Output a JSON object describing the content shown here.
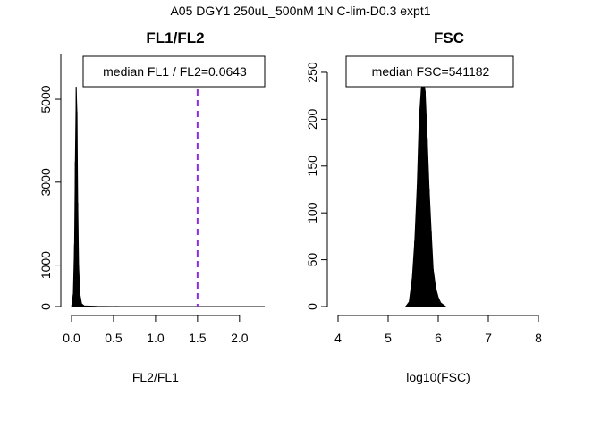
{
  "figure_title": "A05 DGY1 250uL_500nM 1N C-lim-D0.3 expt1",
  "chart_data": [
    {
      "type": "histogram",
      "title": "FL1/FL2",
      "xlabel": "FL2/FL1",
      "ylabel": "",
      "xlim": [
        0,
        2.3
      ],
      "ylim": [
        0,
        6100
      ],
      "x_ticks": [
        0.0,
        0.5,
        1.0,
        1.5,
        2.0
      ],
      "x_tick_labels": [
        "0.0",
        "0.5",
        "1.0",
        "1.5",
        "2.0"
      ],
      "y_ticks": [
        0,
        1000,
        3000,
        5000
      ],
      "y_tick_labels": [
        "0",
        "1000",
        "3000",
        "5000"
      ],
      "bins": [
        {
          "x": 0.0,
          "count": 0
        },
        {
          "x": 0.02,
          "count": 300
        },
        {
          "x": 0.035,
          "count": 1500
        },
        {
          "x": 0.045,
          "count": 3500
        },
        {
          "x": 0.055,
          "count": 5300
        },
        {
          "x": 0.065,
          "count": 4700
        },
        {
          "x": 0.075,
          "count": 2500
        },
        {
          "x": 0.085,
          "count": 1000
        },
        {
          "x": 0.1,
          "count": 300
        },
        {
          "x": 0.12,
          "count": 70
        },
        {
          "x": 0.15,
          "count": 20
        },
        {
          "x": 0.3,
          "count": 6
        },
        {
          "x": 0.6,
          "count": 2
        },
        {
          "x": 2.3,
          "count": 0
        }
      ],
      "reference_line": {
        "x": 1.5,
        "color": "#8a2be2",
        "style": "dashed"
      },
      "legend_text": "median FL1 / FL2=0.0643",
      "legend_position": "top-right"
    },
    {
      "type": "histogram",
      "title": "FSC",
      "xlabel": "log10(FSC)",
      "ylabel": "",
      "xlim": [
        4,
        8
      ],
      "ylim": [
        0,
        270
      ],
      "x_ticks": [
        4,
        5,
        6,
        7,
        8
      ],
      "x_tick_labels": [
        "4",
        "5",
        "6",
        "7",
        "8"
      ],
      "y_ticks": [
        0,
        50,
        100,
        150,
        200,
        250
      ],
      "y_tick_labels": [
        "0",
        "50",
        "100",
        "150",
        "200",
        "250"
      ],
      "bins": [
        {
          "x": 5.35,
          "count": 0
        },
        {
          "x": 5.42,
          "count": 5
        },
        {
          "x": 5.48,
          "count": 30
        },
        {
          "x": 5.53,
          "count": 70
        },
        {
          "x": 5.58,
          "count": 130
        },
        {
          "x": 5.62,
          "count": 200
        },
        {
          "x": 5.66,
          "count": 232
        },
        {
          "x": 5.7,
          "count": 245
        },
        {
          "x": 5.74,
          "count": 230
        },
        {
          "x": 5.78,
          "count": 180
        },
        {
          "x": 5.82,
          "count": 125
        },
        {
          "x": 5.86,
          "count": 80
        },
        {
          "x": 5.9,
          "count": 40
        },
        {
          "x": 5.95,
          "count": 20
        },
        {
          "x": 6.0,
          "count": 10
        },
        {
          "x": 6.05,
          "count": 4
        },
        {
          "x": 6.15,
          "count": 0
        }
      ],
      "legend_text": "median FSC=541182",
      "legend_position": "top-right"
    }
  ]
}
